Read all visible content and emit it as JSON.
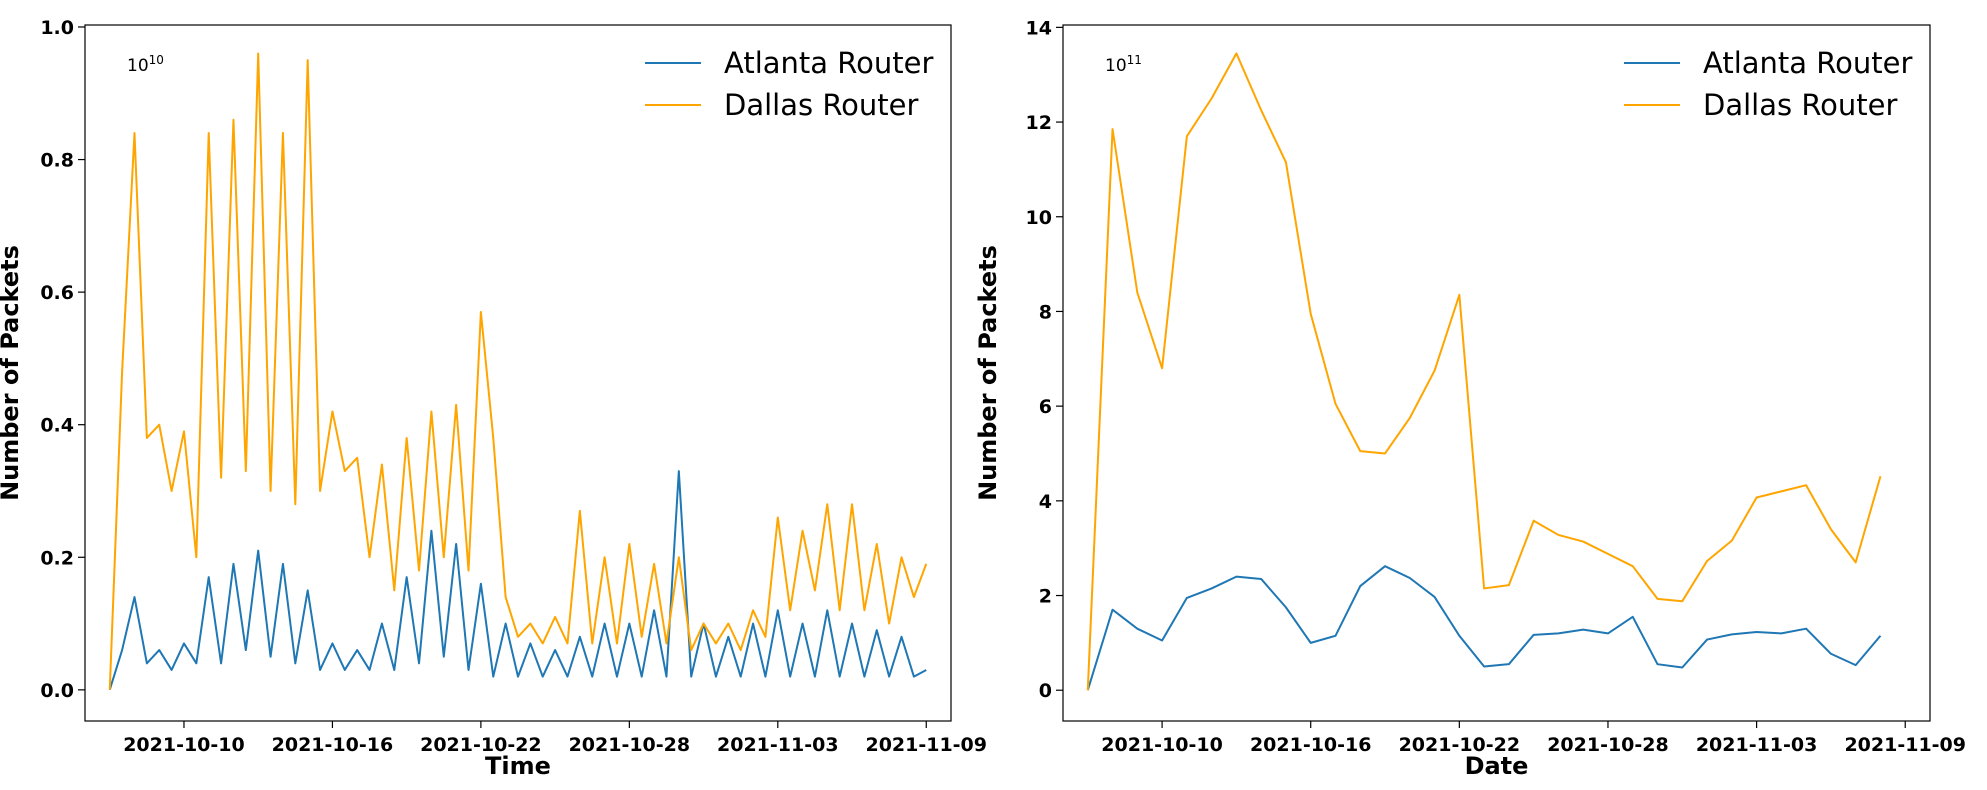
{
  "chart_data": [
    {
      "type": "line",
      "xlabel": "Time",
      "ylabel": "Number of Packets",
      "offset_base": "10",
      "offset_exp": "10",
      "xlim": [
        "2021-10-06",
        "2021-11-10"
      ],
      "ylim": [
        -0.047,
        1.003
      ],
      "x_ticks": [
        "2021-10-10",
        "2021-10-16",
        "2021-10-22",
        "2021-10-28",
        "2021-11-03",
        "2021-11-09"
      ],
      "y_ticks": [
        "0.0",
        "0.2",
        "0.4",
        "0.6",
        "0.8",
        "1.0"
      ],
      "legend_position": "top-right",
      "x": [
        "2021-10-07",
        "2021-10-07 12:00",
        "2021-10-08",
        "2021-10-08 12:00",
        "2021-10-09",
        "2021-10-09 12:00",
        "2021-10-10",
        "2021-10-10 12:00",
        "2021-10-11",
        "2021-10-11 12:00",
        "2021-10-12",
        "2021-10-12 12:00",
        "2021-10-13",
        "2021-10-13 12:00",
        "2021-10-14",
        "2021-10-14 12:00",
        "2021-10-15",
        "2021-10-15 12:00",
        "2021-10-16",
        "2021-10-16 12:00",
        "2021-10-17",
        "2021-10-17 12:00",
        "2021-10-18",
        "2021-10-18 12:00",
        "2021-10-19",
        "2021-10-19 12:00",
        "2021-10-20",
        "2021-10-20 12:00",
        "2021-10-21",
        "2021-10-21 12:00",
        "2021-10-22",
        "2021-10-22 12:00",
        "2021-10-23",
        "2021-10-23 12:00",
        "2021-10-24",
        "2021-10-24 12:00",
        "2021-10-25",
        "2021-10-25 12:00",
        "2021-10-26",
        "2021-10-26 12:00",
        "2021-10-27",
        "2021-10-27 12:00",
        "2021-10-28",
        "2021-10-28 12:00",
        "2021-10-29",
        "2021-10-29 12:00",
        "2021-10-30",
        "2021-10-30 12:00",
        "2021-10-31",
        "2021-10-31 12:00",
        "2021-11-01",
        "2021-11-01 12:00",
        "2021-11-02",
        "2021-11-02 12:00",
        "2021-11-03",
        "2021-11-03 12:00",
        "2021-11-04",
        "2021-11-04 12:00",
        "2021-11-05",
        "2021-11-05 12:00",
        "2021-11-06",
        "2021-11-06 12:00",
        "2021-11-07",
        "2021-11-07 12:00",
        "2021-11-08",
        "2021-11-08 12:00",
        "2021-11-09"
      ],
      "series": [
        {
          "name": "Atlanta Router",
          "color": "#1f77b4",
          "values": [
            0.0,
            0.06,
            0.14,
            0.04,
            0.06,
            0.03,
            0.07,
            0.04,
            0.17,
            0.04,
            0.19,
            0.06,
            0.21,
            0.05,
            0.19,
            0.04,
            0.15,
            0.03,
            0.07,
            0.03,
            0.06,
            0.03,
            0.1,
            0.03,
            0.17,
            0.04,
            0.24,
            0.05,
            0.22,
            0.03,
            0.16,
            0.02,
            0.1,
            0.02,
            0.07,
            0.02,
            0.06,
            0.02,
            0.08,
            0.02,
            0.1,
            0.02,
            0.1,
            0.02,
            0.12,
            0.02,
            0.33,
            0.02,
            0.1,
            0.02,
            0.08,
            0.02,
            0.1,
            0.02,
            0.12,
            0.02,
            0.1,
            0.02,
            0.12,
            0.02,
            0.1,
            0.02,
            0.09,
            0.02,
            0.08,
            0.02,
            0.03
          ]
        },
        {
          "name": "Dallas Router",
          "color": "#ffa500",
          "values": [
            0.0,
            0.48,
            0.84,
            0.38,
            0.4,
            0.3,
            0.39,
            0.2,
            0.84,
            0.32,
            0.86,
            0.33,
            0.96,
            0.3,
            0.84,
            0.28,
            0.95,
            0.3,
            0.42,
            0.33,
            0.35,
            0.2,
            0.34,
            0.15,
            0.38,
            0.18,
            0.42,
            0.2,
            0.43,
            0.18,
            0.57,
            0.38,
            0.14,
            0.08,
            0.1,
            0.07,
            0.11,
            0.07,
            0.27,
            0.07,
            0.2,
            0.07,
            0.22,
            0.08,
            0.19,
            0.07,
            0.2,
            0.06,
            0.1,
            0.07,
            0.1,
            0.06,
            0.12,
            0.08,
            0.26,
            0.12,
            0.24,
            0.15,
            0.28,
            0.12,
            0.28,
            0.12,
            0.22,
            0.1,
            0.2,
            0.14,
            0.19
          ]
        }
      ]
    },
    {
      "type": "line",
      "xlabel": "Date",
      "ylabel": "Number of Packets",
      "offset_base": "10",
      "offset_exp": "11",
      "xlim": [
        "2021-10-06",
        "2021-11-10"
      ],
      "ylim": [
        -0.65,
        14.05
      ],
      "x_ticks": [
        "2021-10-10",
        "2021-10-16",
        "2021-10-22",
        "2021-10-28",
        "2021-11-03",
        "2021-11-09"
      ],
      "y_ticks": [
        "0",
        "2",
        "4",
        "6",
        "8",
        "10",
        "12",
        "14"
      ],
      "legend_position": "top-right",
      "x": [
        "2021-10-07",
        "2021-10-08",
        "2021-10-09",
        "2021-10-10",
        "2021-10-11",
        "2021-10-12",
        "2021-10-13",
        "2021-10-14",
        "2021-10-15",
        "2021-10-16",
        "2021-10-17",
        "2021-10-18",
        "2021-10-19",
        "2021-10-20",
        "2021-10-21",
        "2021-10-22",
        "2021-10-23",
        "2021-10-24",
        "2021-10-25",
        "2021-10-26",
        "2021-10-27",
        "2021-10-28",
        "2021-10-29",
        "2021-10-30",
        "2021-10-31",
        "2021-11-01",
        "2021-11-02",
        "2021-11-03",
        "2021-11-04",
        "2021-11-05",
        "2021-11-06",
        "2021-11-07",
        "2021-11-08"
      ],
      "series": [
        {
          "name": "Atlanta Router",
          "color": "#1f77b4",
          "values": [
            0.0,
            1.7,
            1.3,
            1.05,
            1.95,
            2.15,
            2.4,
            2.35,
            1.75,
            1.0,
            1.15,
            2.2,
            2.62,
            2.37,
            1.97,
            1.15,
            0.5,
            0.55,
            1.17,
            1.2,
            1.28,
            1.2,
            1.55,
            0.55,
            0.48,
            1.07,
            1.18,
            1.23,
            1.2,
            1.3,
            0.77,
            0.53,
            1.15
          ]
        },
        {
          "name": "Dallas Router",
          "color": "#ffa500",
          "values": [
            0.0,
            11.85,
            8.4,
            6.8,
            11.7,
            12.5,
            13.45,
            12.25,
            11.15,
            7.95,
            6.05,
            5.05,
            5.0,
            5.75,
            6.75,
            8.35,
            2.15,
            2.22,
            3.58,
            3.28,
            3.14,
            2.88,
            2.62,
            1.93,
            1.88,
            2.73,
            3.16,
            4.07,
            4.2,
            4.33,
            3.4,
            2.7,
            4.52
          ]
        }
      ]
    }
  ]
}
